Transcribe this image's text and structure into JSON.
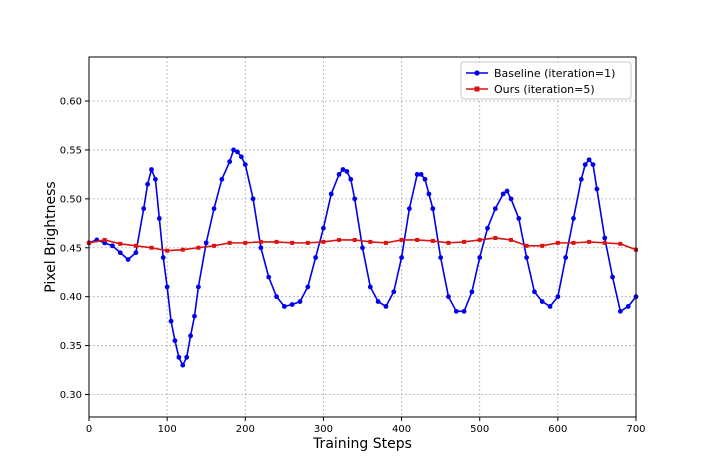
{
  "chart_data": {
    "type": "line",
    "title": "",
    "xlabel": "Training Steps",
    "ylabel": "Pixel Brightness",
    "xlim": [
      0,
      700
    ],
    "ylim": [
      0.277,
      0.645
    ],
    "xticks": [
      0,
      100,
      200,
      300,
      400,
      500,
      600,
      700
    ],
    "xtick_labels": [
      "0",
      "100",
      "200",
      "300",
      "400",
      "500",
      "600",
      "700"
    ],
    "yticks": [
      0.3,
      0.35,
      0.4,
      0.45,
      0.5,
      0.55,
      0.6
    ],
    "ytick_labels": [
      "0.30",
      "0.35",
      "0.40",
      "0.45",
      "0.50",
      "0.55",
      "0.60"
    ],
    "grid": true,
    "legend_position": "top-right",
    "series": [
      {
        "name": "Baseline (iteration=1)",
        "color": "#0000ee",
        "marker": "circle",
        "x": [
          0,
          10,
          20,
          30,
          40,
          50,
          60,
          70,
          75,
          80,
          85,
          90,
          95,
          100,
          105,
          110,
          115,
          120,
          125,
          130,
          135,
          140,
          150,
          160,
          170,
          180,
          185,
          190,
          195,
          200,
          210,
          220,
          230,
          240,
          250,
          260,
          270,
          280,
          290,
          300,
          310,
          320,
          325,
          330,
          335,
          340,
          350,
          360,
          370,
          380,
          390,
          400,
          410,
          420,
          425,
          430,
          435,
          440,
          450,
          460,
          470,
          480,
          490,
          500,
          510,
          520,
          530,
          535,
          540,
          550,
          560,
          570,
          580,
          590,
          600,
          610,
          620,
          630,
          635,
          640,
          645,
          650,
          660,
          670,
          680,
          690,
          700
        ],
        "y": [
          0.455,
          0.458,
          0.455,
          0.452,
          0.445,
          0.438,
          0.445,
          0.49,
          0.515,
          0.53,
          0.52,
          0.48,
          0.44,
          0.41,
          0.375,
          0.355,
          0.338,
          0.33,
          0.338,
          0.36,
          0.38,
          0.41,
          0.455,
          0.49,
          0.52,
          0.538,
          0.55,
          0.548,
          0.543,
          0.535,
          0.5,
          0.45,
          0.42,
          0.4,
          0.39,
          0.392,
          0.395,
          0.41,
          0.44,
          0.47,
          0.505,
          0.525,
          0.53,
          0.528,
          0.52,
          0.5,
          0.45,
          0.41,
          0.395,
          0.39,
          0.405,
          0.44,
          0.49,
          0.525,
          0.525,
          0.52,
          0.505,
          0.49,
          0.44,
          0.4,
          0.385,
          0.385,
          0.405,
          0.44,
          0.47,
          0.49,
          0.505,
          0.508,
          0.5,
          0.48,
          0.44,
          0.405,
          0.395,
          0.39,
          0.4,
          0.44,
          0.48,
          0.52,
          0.535,
          0.54,
          0.535,
          0.51,
          0.46,
          0.42,
          0.385,
          0.39,
          0.4
        ]
      },
      {
        "name": "Ours (iteration=5)",
        "color": "#dd1111",
        "marker": "square",
        "x": [
          0,
          20,
          40,
          60,
          80,
          100,
          120,
          140,
          160,
          180,
          200,
          220,
          240,
          260,
          280,
          300,
          320,
          340,
          360,
          380,
          400,
          420,
          440,
          460,
          480,
          500,
          520,
          540,
          560,
          580,
          600,
          620,
          640,
          660,
          680,
          700
        ],
        "y": [
          0.455,
          0.458,
          0.454,
          0.452,
          0.45,
          0.447,
          0.448,
          0.45,
          0.452,
          0.455,
          0.455,
          0.456,
          0.456,
          0.455,
          0.455,
          0.456,
          0.458,
          0.458,
          0.456,
          0.455,
          0.458,
          0.458,
          0.457,
          0.455,
          0.456,
          0.458,
          0.46,
          0.458,
          0.452,
          0.452,
          0.455,
          0.455,
          0.456,
          0.455,
          0.454,
          0.448
        ]
      }
    ]
  }
}
